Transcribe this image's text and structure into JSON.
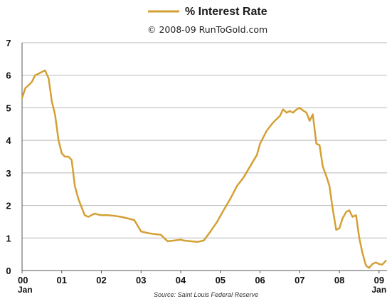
{
  "chart_data": {
    "type": "line",
    "legend": {
      "label": "% Interest Rate",
      "placement": "top-center"
    },
    "subtitle": "© 2008-09 RunToGold.com",
    "source": "Source: Saint Louis Federal Reserve",
    "ylim": [
      0,
      7
    ],
    "yticks": [
      0,
      1,
      2,
      3,
      4,
      5,
      6,
      7
    ],
    "xlim": [
      2000.0,
      2009.2
    ],
    "xticks": [
      {
        "value": 2000.0,
        "label": "00"
      },
      {
        "value": 2001.0,
        "label": "01"
      },
      {
        "value": 2002.0,
        "label": "02"
      },
      {
        "value": 2003.0,
        "label": "03"
      },
      {
        "value": 2004.0,
        "label": "04"
      },
      {
        "value": 2005.0,
        "label": "05"
      },
      {
        "value": 2006.0,
        "label": "06"
      },
      {
        "value": 2007.0,
        "label": "07"
      },
      {
        "value": 2008.0,
        "label": "08"
      },
      {
        "value": 2009.0,
        "label": "09"
      }
    ],
    "month_labels": [
      {
        "value": 2000.0,
        "label": "Jan"
      },
      {
        "value": 2009.0,
        "label": "Jan"
      }
    ],
    "grid": true,
    "colors": {
      "series": "#d4a035",
      "grid": "#b9b9b9"
    },
    "series": [
      {
        "name": "% Interest Rate",
        "x": [
          2000.0,
          2000.08,
          2000.17,
          2000.25,
          2000.33,
          2000.42,
          2000.5,
          2000.58,
          2000.67,
          2000.75,
          2000.83,
          2000.92,
          2001.0,
          2001.08,
          2001.17,
          2001.25,
          2001.33,
          2001.42,
          2001.5,
          2001.58,
          2001.67,
          2001.75,
          2001.83,
          2001.92,
          2002.0,
          2002.17,
          2002.33,
          2002.5,
          2002.67,
          2002.83,
          2003.0,
          2003.17,
          2003.33,
          2003.5,
          2003.58,
          2003.67,
          2003.83,
          2004.0,
          2004.08,
          2004.25,
          2004.42,
          2004.58,
          2004.75,
          2004.92,
          2005.08,
          2005.25,
          2005.42,
          2005.58,
          2005.75,
          2005.92,
          2006.0,
          2006.17,
          2006.33,
          2006.5,
          2006.58,
          2006.67,
          2006.75,
          2006.83,
          2006.92,
          2007.0,
          2007.08,
          2007.17,
          2007.25,
          2007.33,
          2007.42,
          2007.5,
          2007.58,
          2007.67,
          2007.75,
          2007.83,
          2007.92,
          2008.0,
          2008.08,
          2008.17,
          2008.25,
          2008.33,
          2008.42,
          2008.5,
          2008.58,
          2008.67,
          2008.75,
          2008.83,
          2008.92,
          2009.0,
          2009.08,
          2009.17
        ],
        "values": [
          5.3,
          5.6,
          5.7,
          5.8,
          6.0,
          6.05,
          6.1,
          6.15,
          5.9,
          5.2,
          4.8,
          4.0,
          3.6,
          3.5,
          3.5,
          3.4,
          2.6,
          2.2,
          1.95,
          1.7,
          1.65,
          1.7,
          1.75,
          1.72,
          1.7,
          1.7,
          1.68,
          1.65,
          1.6,
          1.55,
          1.2,
          1.15,
          1.12,
          1.1,
          1.0,
          0.9,
          0.92,
          0.95,
          0.92,
          0.9,
          0.88,
          0.92,
          1.2,
          1.5,
          1.85,
          2.2,
          2.6,
          2.85,
          3.2,
          3.55,
          3.9,
          4.3,
          4.55,
          4.75,
          4.95,
          4.85,
          4.9,
          4.85,
          4.95,
          5.0,
          4.92,
          4.85,
          4.6,
          4.8,
          3.9,
          3.85,
          3.2,
          2.9,
          2.6,
          1.9,
          1.25,
          1.3,
          1.6,
          1.8,
          1.85,
          1.65,
          1.7,
          1.0,
          0.55,
          0.15,
          0.08,
          0.2,
          0.25,
          0.2,
          0.18,
          0.3
        ]
      }
    ]
  }
}
